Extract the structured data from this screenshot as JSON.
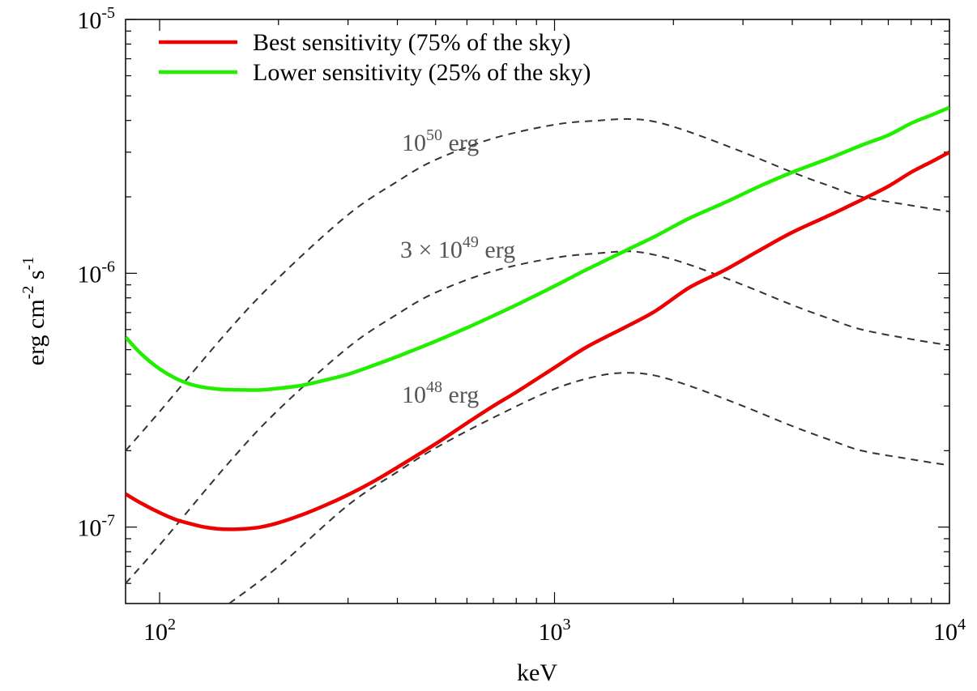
{
  "chart_data": {
    "type": "line",
    "xlabel": "keV",
    "ylabel": "erg cm^-2 s^-1",
    "xscale": "log",
    "yscale": "log",
    "xlim": [
      82,
      10000
    ],
    "ylim": [
      5e-08,
      1e-05
    ],
    "grid": false,
    "legend_position": "top-left",
    "x_ticks": [
      {
        "base": "10",
        "exp": "2",
        "value": 100
      },
      {
        "base": "10",
        "exp": "3",
        "value": 1000
      },
      {
        "base": "10",
        "exp": "4",
        "value": 10000
      }
    ],
    "y_ticks": [
      {
        "base": "10",
        "exp": "-7",
        "value": 1e-07
      },
      {
        "base": "10",
        "exp": "-6",
        "value": 1e-06
      },
      {
        "base": "10",
        "exp": "-5",
        "value": 1e-05
      }
    ],
    "series": [
      {
        "name": "Best sensitivity (75% of the sky)",
        "color": "#ee0000",
        "style": "solid",
        "x": [
          82,
          90,
          100,
          110,
          120,
          130,
          140,
          150,
          165,
          180,
          200,
          230,
          260,
          300,
          350,
          400,
          500,
          600,
          700,
          800,
          1000,
          1200,
          1500,
          1800,
          2200,
          2700,
          3300,
          4000,
          5000,
          6000,
          7000,
          8000,
          9000,
          10000
        ],
        "y": [
          1.35e-07,
          1.24e-07,
          1.14e-07,
          1.07e-07,
          1.03e-07,
          1e-07,
          9.85e-08,
          9.8e-08,
          9.85e-08,
          1e-07,
          1.04e-07,
          1.12e-07,
          1.21e-07,
          1.34e-07,
          1.52e-07,
          1.72e-07,
          2.13e-07,
          2.57e-07,
          3e-07,
          3.4e-07,
          4.25e-07,
          5.1e-07,
          6.1e-07,
          7.1e-07,
          8.8e-07,
          1.03e-06,
          1.23e-06,
          1.45e-06,
          1.7e-06,
          1.95e-06,
          2.2e-06,
          2.5e-06,
          2.75e-06,
          3e-06
        ]
      },
      {
        "name": "Lower sensitivity (25% of the sky)",
        "color": "#22ee00",
        "style": "solid",
        "x": [
          82,
          90,
          100,
          110,
          120,
          130,
          140,
          150,
          165,
          180,
          200,
          230,
          260,
          300,
          350,
          400,
          500,
          600,
          700,
          800,
          1000,
          1200,
          1500,
          1800,
          2200,
          2700,
          3300,
          4000,
          5000,
          6000,
          7000,
          8000,
          9000,
          10000
        ],
        "y": [
          5.6e-07,
          4.8e-07,
          4.2e-07,
          3.85e-07,
          3.65e-07,
          3.55e-07,
          3.5e-07,
          3.48e-07,
          3.47e-07,
          3.47e-07,
          3.52e-07,
          3.62e-07,
          3.78e-07,
          4e-07,
          4.35e-07,
          4.7e-07,
          5.4e-07,
          6.1e-07,
          6.8e-07,
          7.5e-07,
          8.9e-07,
          1.03e-06,
          1.22e-06,
          1.4e-06,
          1.65e-06,
          1.9e-06,
          2.2e-06,
          2.5e-06,
          2.85e-06,
          3.2e-06,
          3.5e-06,
          3.9e-06,
          4.2e-06,
          4.5e-06
        ]
      },
      {
        "name": "10^50 erg",
        "color": "#333333",
        "style": "dashed",
        "x": [
          82,
          100,
          150,
          200,
          300,
          400,
          500,
          700,
          1000,
          1300,
          1550,
          1800,
          2200,
          3000,
          4000,
          5000,
          6000,
          8000,
          10000
        ],
        "y": [
          2e-07,
          2.85e-07,
          6e-07,
          9.6e-07,
          1.7e-06,
          2.3e-06,
          2.8e-06,
          3.4e-06,
          3.85e-06,
          4e-06,
          4.05e-06,
          3.95e-06,
          3.6e-06,
          3e-06,
          2.5e-06,
          2.2e-06,
          2e-06,
          1.85e-06,
          1.75e-06
        ]
      },
      {
        "name": "3 × 10^49 erg",
        "color": "#333333",
        "style": "dashed",
        "x": [
          82,
          100,
          150,
          200,
          300,
          400,
          500,
          700,
          1000,
          1300,
          1550,
          1800,
          2200,
          3000,
          4000,
          5000,
          6000,
          8000,
          10000
        ],
        "y": [
          6e-08,
          8.5e-08,
          1.8e-07,
          2.9e-07,
          5.1e-07,
          6.9e-07,
          8.4e-07,
          1.02e-06,
          1.15e-06,
          1.2e-06,
          1.22e-06,
          1.18e-06,
          1.08e-06,
          9e-07,
          7.5e-07,
          6.6e-07,
          6e-07,
          5.5e-07,
          5.2e-07
        ]
      },
      {
        "name": "10^48 erg",
        "color": "#333333",
        "style": "dashed",
        "x": [
          150,
          200,
          300,
          400,
          500,
          700,
          1000,
          1300,
          1550,
          1800,
          2200,
          3000,
          4000,
          5000,
          6000,
          8000,
          10000
        ],
        "y": [
          5e-08,
          7e-08,
          1.22e-07,
          1.65e-07,
          2.05e-07,
          2.7e-07,
          3.5e-07,
          3.95e-07,
          4.05e-07,
          3.95e-07,
          3.6e-07,
          3e-07,
          2.5e-07,
          2.2e-07,
          2e-07,
          1.85e-07,
          1.75e-07
        ]
      }
    ],
    "annotations": [
      {
        "pre": "",
        "base": "10",
        "exp": "50",
        "post": " erg"
      },
      {
        "pre": "3 × ",
        "base": "10",
        "exp": "49",
        "post": " erg"
      },
      {
        "pre": "",
        "base": "10",
        "exp": "48",
        "post": " erg"
      }
    ]
  }
}
